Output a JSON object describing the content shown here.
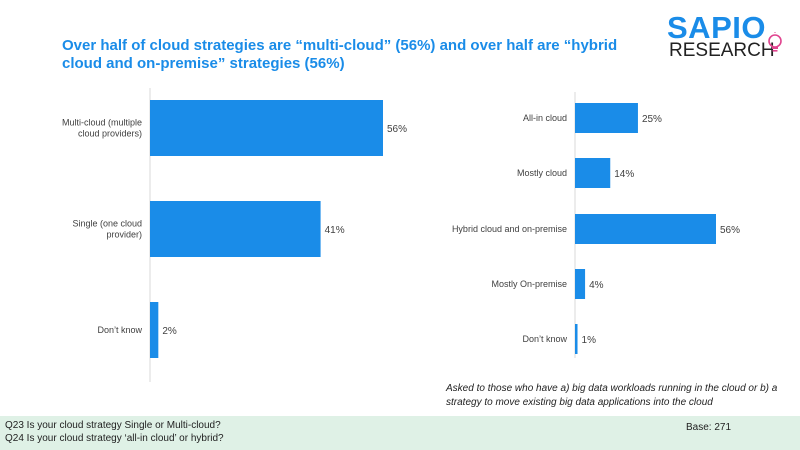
{
  "title": "Over half of cloud strategies are “multi-cloud” (56%) and over half are “hybrid cloud and on-premise” strategies (56%)",
  "logo": {
    "top": "SAPIO",
    "bottom": "RESEARCH"
  },
  "colors": {
    "bar": "#1a8ce8",
    "title": "#1a8ce8",
    "footer_bg": "#dff1e6"
  },
  "chart_data": [
    {
      "type": "bar",
      "orientation": "horizontal",
      "categories": [
        [
          "Multi-cloud (multiple",
          "cloud providers)"
        ],
        [
          "Single (one cloud",
          "provider)"
        ],
        [
          "Don’t know"
        ]
      ],
      "values": [
        56,
        41,
        2
      ],
      "value_labels": [
        "56%",
        "41%",
        "2%"
      ],
      "xlim": [
        0,
        60
      ]
    },
    {
      "type": "bar",
      "orientation": "horizontal",
      "categories": [
        [
          "All-in cloud"
        ],
        [
          "Mostly cloud"
        ],
        [
          "Hybrid cloud and on-premise"
        ],
        [
          "Mostly On-premise"
        ],
        [
          "Don’t know"
        ]
      ],
      "values": [
        25,
        14,
        56,
        4,
        1
      ],
      "value_labels": [
        "25%",
        "14%",
        "56%",
        "4%",
        "1%"
      ],
      "xlim": [
        0,
        60
      ]
    }
  ],
  "note": "Asked to those who have a) big data workloads running in the cloud or b) a strategy to move existing big data applications into the cloud",
  "footer": {
    "q1": "Q23 Is your cloud strategy Single or Multi-cloud?",
    "q2": "Q24 Is your cloud strategy ‘all-in cloud’ or hybrid?",
    "base": "Base: 271"
  }
}
